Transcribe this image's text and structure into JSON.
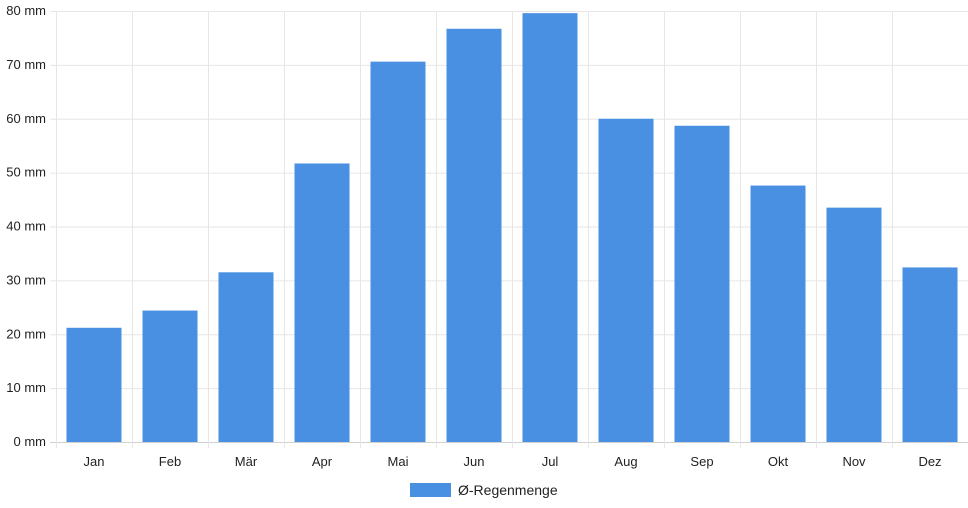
{
  "chart_data": {
    "type": "bar",
    "categories": [
      "Jan",
      "Feb",
      "Mär",
      "Apr",
      "Mai",
      "Jun",
      "Jul",
      "Aug",
      "Sep",
      "Okt",
      "Nov",
      "Dez"
    ],
    "series": [
      {
        "name": "Ø-Regenmenge",
        "values": [
          21.2,
          24.4,
          31.5,
          51.7,
          70.6,
          76.7,
          79.6,
          60.0,
          58.7,
          47.6,
          43.5,
          32.4
        ],
        "color": "#4a90e2"
      }
    ],
    "y_ticks": [
      "0 mm",
      "10 mm",
      "20 mm",
      "30 mm",
      "40 mm",
      "50 mm",
      "60 mm",
      "70 mm",
      "80 mm"
    ],
    "ylim": [
      0,
      80
    ],
    "grid": true,
    "legend_position": "bottom-center"
  }
}
